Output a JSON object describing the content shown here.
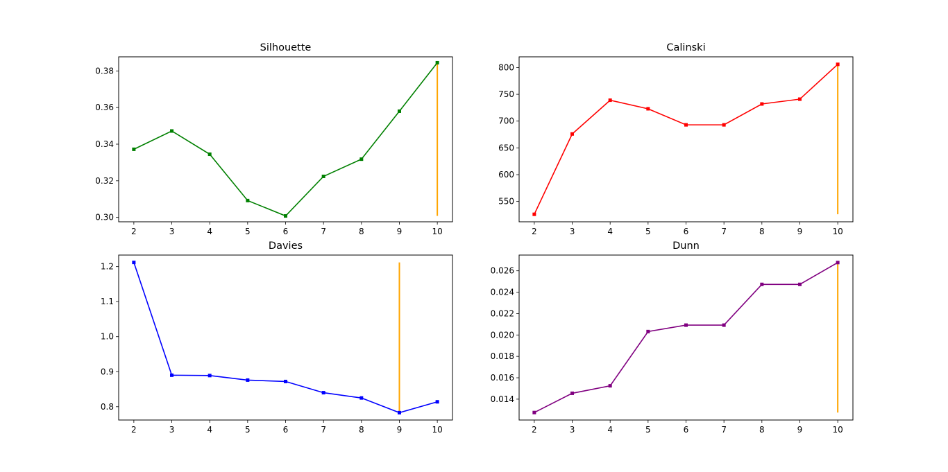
{
  "chart_data": [
    {
      "type": "line",
      "title": "Silhouette",
      "color": "#008000",
      "marker_line_color": "#ffa500",
      "x": [
        2,
        3,
        4,
        5,
        6,
        7,
        8,
        9,
        10
      ],
      "values": [
        0.3372,
        0.3472,
        0.3345,
        0.3092,
        0.3008,
        0.3224,
        0.3318,
        0.358,
        0.3845
      ],
      "highlight_x": 10,
      "highlight_range": [
        0.3008,
        0.3845
      ],
      "ylim": [
        0.2976,
        0.3877
      ],
      "xlim": [
        1.6,
        10.4
      ],
      "xticks": [
        "2",
        "3",
        "4",
        "5",
        "6",
        "7",
        "8",
        "9",
        "10"
      ],
      "yticks": [
        0.3,
        0.32,
        0.34,
        0.36,
        0.38
      ],
      "ytick_labels": [
        "0.30",
        "0.32",
        "0.34",
        "0.36",
        "0.38"
      ]
    },
    {
      "type": "line",
      "title": "Calinski",
      "color": "#ff0000",
      "marker_line_color": "#ffa500",
      "x": [
        2,
        3,
        4,
        5,
        6,
        7,
        8,
        9,
        10
      ],
      "values": [
        526,
        676,
        739,
        723,
        693,
        693,
        732,
        741,
        806
      ],
      "highlight_x": 10,
      "highlight_range": [
        526,
        806
      ],
      "ylim": [
        512,
        820
      ],
      "xlim": [
        1.6,
        10.4
      ],
      "xticks": [
        "2",
        "3",
        "4",
        "5",
        "6",
        "7",
        "8",
        "9",
        "10"
      ],
      "yticks": [
        550,
        600,
        650,
        700,
        750,
        800
      ],
      "ytick_labels": [
        "550",
        "600",
        "650",
        "700",
        "750",
        "800"
      ]
    },
    {
      "type": "line",
      "title": "Davies",
      "color": "#0000ff",
      "marker_line_color": "#ffa500",
      "x": [
        2,
        3,
        4,
        5,
        6,
        7,
        8,
        9,
        10
      ],
      "values": [
        1.212,
        0.89,
        0.889,
        0.876,
        0.872,
        0.84,
        0.825,
        0.783,
        0.814
      ],
      "highlight_x": 9,
      "highlight_range": [
        0.783,
        1.212
      ],
      "ylim": [
        0.762,
        1.233
      ],
      "xlim": [
        1.6,
        10.4
      ],
      "xticks": [
        "2",
        "3",
        "4",
        "5",
        "6",
        "7",
        "8",
        "9",
        "10"
      ],
      "yticks": [
        0.8,
        0.9,
        1.0,
        1.1,
        1.2
      ],
      "ytick_labels": [
        "0.8",
        "0.9",
        "1.0",
        "1.1",
        "1.2"
      ]
    },
    {
      "type": "line",
      "title": "Dunn",
      "color": "#800080",
      "marker_line_color": "#ffa500",
      "x": [
        2,
        3,
        4,
        5,
        6,
        7,
        8,
        9,
        10
      ],
      "values": [
        0.01275,
        0.01455,
        0.01525,
        0.02032,
        0.02092,
        0.02092,
        0.02473,
        0.02473,
        0.02677
      ],
      "highlight_x": 10,
      "highlight_range": [
        0.01275,
        0.02677
      ],
      "ylim": [
        0.01205,
        0.02747
      ],
      "xlim": [
        1.6,
        10.4
      ],
      "xticks": [
        "2",
        "3",
        "4",
        "5",
        "6",
        "7",
        "8",
        "9",
        "10"
      ],
      "yticks": [
        0.014,
        0.016,
        0.018,
        0.02,
        0.022,
        0.024,
        0.026
      ],
      "ytick_labels": [
        "0.014",
        "0.016",
        "0.018",
        "0.020",
        "0.022",
        "0.024",
        "0.026"
      ]
    }
  ]
}
